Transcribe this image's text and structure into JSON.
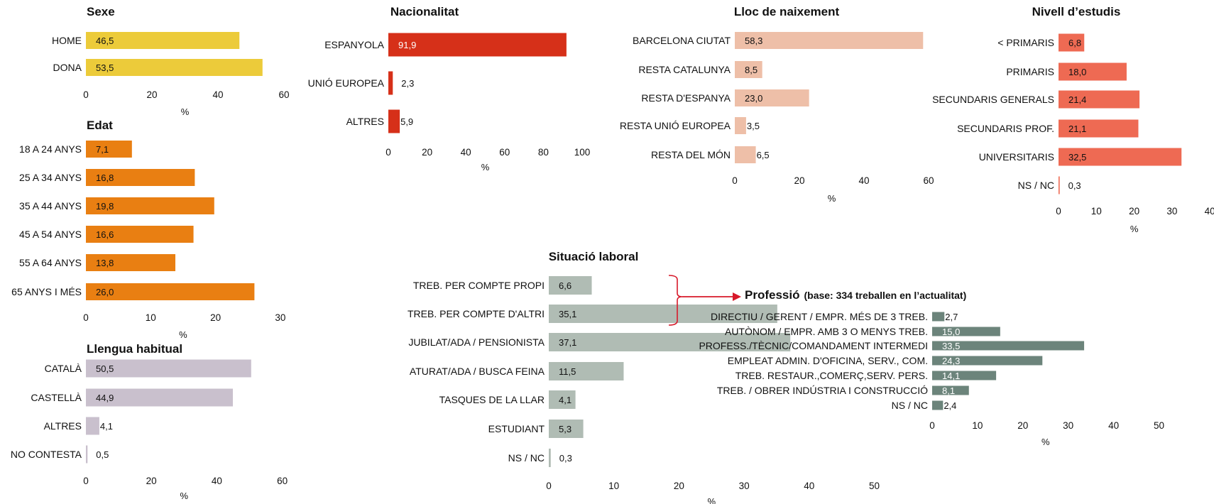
{
  "chart_data": [
    {
      "id": "sexe",
      "type": "bar",
      "title": "Sexe",
      "unit": "%",
      "categories": [
        "HOME",
        "DONA"
      ],
      "values": [
        46.5,
        53.5
      ],
      "labels": [
        "46,5",
        "53,5"
      ],
      "ticks": [
        "0",
        "20",
        "40",
        "60"
      ],
      "xlim": [
        0,
        60
      ],
      "color": "#ECCB3A"
    },
    {
      "id": "edat",
      "type": "bar",
      "title": "Edat",
      "unit": "%",
      "categories": [
        "18 A 24 ANYS",
        "25 A 34 ANYS",
        "35 A 44 ANYS",
        "45 A 54 ANYS",
        "55 A 64 ANYS",
        "65 ANYS I MÉS"
      ],
      "values": [
        7.1,
        16.8,
        19.8,
        16.6,
        13.8,
        26.0
      ],
      "labels": [
        "7,1",
        "16,8",
        "19,8",
        "16,6",
        "13,8",
        "26,0"
      ],
      "ticks": [
        "0",
        "10",
        "20",
        "30"
      ],
      "xlim": [
        0,
        30
      ],
      "color": "#E97F12"
    },
    {
      "id": "llengua",
      "type": "bar",
      "title": "Llengua habitual",
      "unit": "%",
      "categories": [
        "CATALÀ",
        "CASTELLÀ",
        "ALTRES",
        "NO CONTESTA"
      ],
      "values": [
        50.5,
        44.9,
        4.1,
        0.5
      ],
      "labels": [
        "50,5",
        "44,9",
        "4,1",
        "0,5"
      ],
      "ticks": [
        "0",
        "20",
        "40",
        "60"
      ],
      "xlim": [
        0,
        60
      ],
      "color": "#C9C0CD"
    },
    {
      "id": "nacionalitat",
      "type": "bar",
      "title": "Nacionalitat",
      "unit": "%",
      "categories": [
        "ESPANYOLA",
        "UNIÓ EUROPEA",
        "ALTRES"
      ],
      "values": [
        91.9,
        2.3,
        5.9
      ],
      "labels": [
        "91,9",
        "2,3",
        "5,9"
      ],
      "ticks": [
        "0",
        "20",
        "40",
        "60",
        "80",
        "100"
      ],
      "xlim": [
        0,
        100
      ],
      "color": "#D63019"
    },
    {
      "id": "lloc",
      "type": "bar",
      "title": "Lloc de naixement",
      "unit": "%",
      "categories": [
        "BARCELONA CIUTAT",
        "RESTA CATALUNYA",
        "RESTA D'ESPANYA",
        "RESTA UNIÓ EUROPEA",
        "RESTA DEL MÓN"
      ],
      "values": [
        58.3,
        8.5,
        23.0,
        3.5,
        6.5
      ],
      "labels": [
        "58,3",
        "8,5",
        "23,0",
        "3,5",
        "6,5"
      ],
      "ticks": [
        "0",
        "20",
        "40",
        "60"
      ],
      "xlim": [
        0,
        60
      ],
      "color": "#EEBFA8"
    },
    {
      "id": "estudis",
      "type": "bar",
      "title": "Nivell d’estudis",
      "unit": "%",
      "categories": [
        "< PRIMARIS",
        "PRIMARIS",
        "SECUNDARIS GENERALS",
        "SECUNDARIS PROF.",
        "UNIVERSITARIS",
        "NS / NC"
      ],
      "values": [
        6.8,
        18.0,
        21.4,
        21.1,
        32.5,
        0.3
      ],
      "labels": [
        "6,8",
        "18,0",
        "21,4",
        "21,1",
        "32,5",
        "0,3"
      ],
      "ticks": [
        "0",
        "10",
        "20",
        "30",
        "40"
      ],
      "xlim": [
        0,
        40
      ],
      "color": "#EE6A53"
    },
    {
      "id": "situacio",
      "type": "bar",
      "title": "Situació laboral",
      "unit": "%",
      "categories": [
        "TREB. PER COMPTE PROPI",
        "TREB. PER COMPTE D'ALTRI",
        "JUBILAT/ADA / PENSIONISTA",
        "ATURAT/ADA / BUSCA FEINA",
        "TASQUES DE LA LLAR",
        "ESTUDIANT",
        "NS / NC"
      ],
      "values": [
        6.6,
        35.1,
        37.1,
        11.5,
        4.1,
        5.3,
        0.3
      ],
      "labels": [
        "6,6",
        "35,1",
        "37,1",
        "11,5",
        "4,1",
        "5,3",
        "0,3"
      ],
      "ticks": [
        "0",
        "10",
        "20",
        "30",
        "40",
        "50"
      ],
      "xlim": [
        0,
        50
      ],
      "color": "#B0BCB4"
    },
    {
      "id": "professio",
      "type": "bar",
      "title": "Professió",
      "subtitle": "(base: 334  treballen en l’actualitat)",
      "unit": "%",
      "categories": [
        "DIRECTIU / GERENT / EMPR. MÉS DE 3 TREB.",
        "AUTÒNOM / EMPR. AMB 3 O MENYS TREB.",
        "PROFESS./TÈCNIC/COMANDAMENT INTERMEDI",
        "EMPLEAT ADMIN. D'OFICINA, SERV., COM.",
        "TREB. RESTAUR.,COMERÇ,SERV. PERS.",
        "TREB. / OBRER INDÚSTRIA I CONSTRUCCIÓ",
        "NS / NC"
      ],
      "values": [
        2.7,
        15.0,
        33.5,
        24.3,
        14.1,
        8.1,
        2.4
      ],
      "labels": [
        "2,7",
        "15,0",
        "33,5",
        "24,3",
        "14,1",
        "8,1",
        "2,4"
      ],
      "ticks": [
        "0",
        "10",
        "20",
        "30",
        "40",
        "50"
      ],
      "xlim": [
        0,
        50
      ],
      "color": "#6C847B"
    }
  ],
  "connector_color": "#D7192A"
}
